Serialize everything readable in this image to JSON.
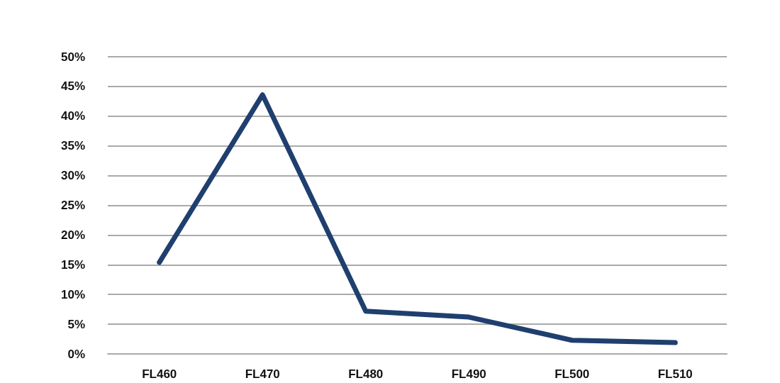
{
  "chart_data": {
    "type": "line",
    "categories": [
      "FL460",
      "FL470",
      "FL480",
      "FL490",
      "FL500",
      "FL510"
    ],
    "series": [
      {
        "color": "#1f3f6e",
        "values": [
          15.4,
          43.6,
          7.2,
          6.2,
          2.3,
          1.9
        ]
      }
    ],
    "ylim": [
      0,
      50
    ],
    "yticks": [
      {
        "value": 0,
        "label": "0%"
      },
      {
        "value": 5,
        "label": "5%"
      },
      {
        "value": 10,
        "label": "10%"
      },
      {
        "value": 15,
        "label": "15%"
      },
      {
        "value": 20,
        "label": "20%"
      },
      {
        "value": 25,
        "label": "25%"
      },
      {
        "value": 30,
        "label": "30%"
      },
      {
        "value": 35,
        "label": "35%"
      },
      {
        "value": 40,
        "label": "40%"
      },
      {
        "value": 45,
        "label": "45%"
      },
      {
        "value": 50,
        "label": "50%"
      }
    ],
    "grid": "y",
    "marker": "none",
    "line_style": "solid"
  }
}
